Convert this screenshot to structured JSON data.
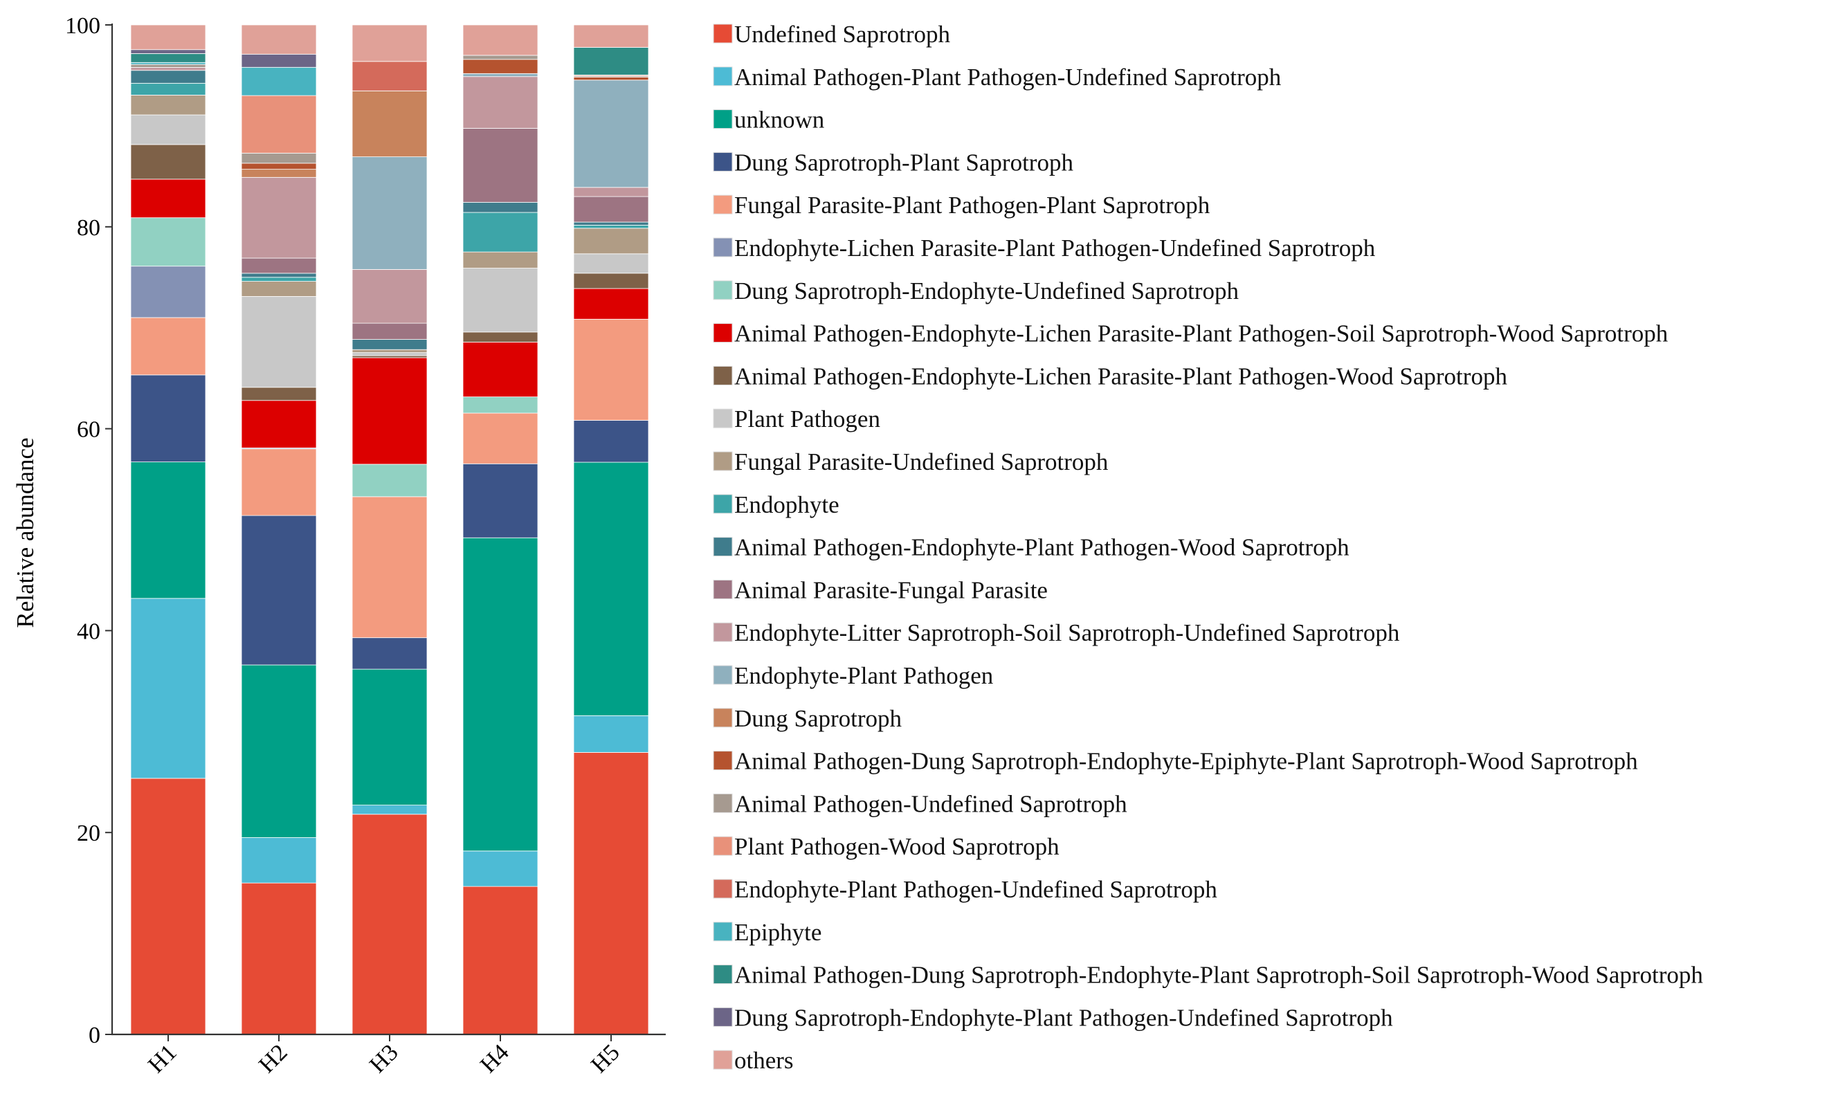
{
  "chart_data": {
    "type": "stacked-bar",
    "title": "",
    "xlabel": "",
    "ylabel": "Relative abundance",
    "ylim": [
      0,
      100
    ],
    "yticks": [
      0,
      20,
      40,
      60,
      80,
      100
    ],
    "categories": [
      "H1",
      "H2",
      "H3",
      "H4",
      "H5"
    ],
    "legend_position": "right",
    "series": [
      {
        "name": "Undefined Saprotroph",
        "color": "#E64B35",
        "values": [
          25.9,
          15.0,
          21.7,
          14.6,
          27.6
        ]
      },
      {
        "name": "Animal Pathogen-Plant Pathogen-Undefined Saprotroph",
        "color": "#4DBBD5",
        "values": [
          18.2,
          4.5,
          0.9,
          3.5,
          3.6
        ]
      },
      {
        "name": "unknown",
        "color": "#00A087",
        "values": [
          13.8,
          17.1,
          13.4,
          30.9,
          24.8
        ]
      },
      {
        "name": "Dung Saprotroph-Plant Saprotroph",
        "color": "#3C5488",
        "values": [
          8.8,
          14.8,
          3.1,
          7.3,
          4.1
        ]
      },
      {
        "name": "Fungal Parasite-Plant Pathogen-Plant Saprotroph",
        "color": "#F39B7F",
        "values": [
          5.8,
          6.6,
          13.9,
          5.0,
          9.9
        ]
      },
      {
        "name": "Endophyte-Lichen Parasite-Plant Pathogen-Undefined Saprotroph",
        "color": "#8491B4",
        "values": [
          5.2,
          0.1,
          0,
          0,
          0
        ]
      },
      {
        "name": "Dung Saprotroph-Endophyte-Undefined Saprotroph",
        "color": "#91D1C2",
        "values": [
          4.9,
          0,
          3.2,
          1.6,
          0
        ]
      },
      {
        "name": "Animal Pathogen-Endophyte-Lichen Parasite-Plant Pathogen-Soil Saprotroph-Wood Saprotroph",
        "color": "#DC0000",
        "values": [
          3.9,
          4.7,
          10.5,
          5.4,
          3.0
        ]
      },
      {
        "name": "Animal Pathogen-Endophyte-Lichen Parasite-Plant Pathogen-Wood Saprotroph",
        "color": "#7E6148",
        "values": [
          3.5,
          1.3,
          0.2,
          1.0,
          1.5
        ]
      },
      {
        "name": "Plant Pathogen",
        "color": "#C8C8C8",
        "values": [
          3.0,
          9.0,
          0.3,
          6.3,
          1.9
        ]
      },
      {
        "name": "Fungal Parasite-Undefined Saprotroph",
        "color": "#B09C85",
        "values": [
          2.0,
          1.5,
          0.3,
          1.6,
          2.5
        ]
      },
      {
        "name": "Endophyte",
        "color": "#3DA5A8",
        "values": [
          1.2,
          0.4,
          0,
          3.9,
          0.3
        ]
      },
      {
        "name": "Animal Pathogen-Endophyte-Plant Pathogen-Wood Saprotroph",
        "color": "#3F7C8C",
        "values": [
          1.3,
          0.4,
          1.0,
          1.0,
          0.3
        ]
      },
      {
        "name": "Animal Parasite-Fungal Parasite",
        "color": "#9D7482",
        "values": [
          0,
          1.5,
          1.6,
          7.3,
          2.5
        ]
      },
      {
        "name": "Endophyte-Litter Saprotroph-Soil Saprotroph-Undefined Saprotroph",
        "color": "#C2979D",
        "values": [
          0.3,
          8.0,
          5.3,
          5.1,
          0.9
        ]
      },
      {
        "name": "Endophyte-Plant Pathogen",
        "color": "#8FB0BE",
        "values": [
          0,
          0,
          11.1,
          0.3,
          10.5
        ]
      },
      {
        "name": "Dung Saprotroph",
        "color": "#C8835C",
        "values": [
          0,
          0.8,
          6.5,
          0,
          0
        ]
      },
      {
        "name": "Animal Pathogen-Dung Saprotroph-Endophyte-Epiphyte-Plant Saprotroph-Wood Saprotroph",
        "color": "#B5532F",
        "values": [
          0,
          0.6,
          0,
          1.4,
          0.3
        ]
      },
      {
        "name": "Animal Pathogen-Undefined Saprotroph",
        "color": "#A69A90",
        "values": [
          0.3,
          1.0,
          0,
          0.4,
          0.1
        ]
      },
      {
        "name": "Plant Pathogen-Wood Saprotroph",
        "color": "#E8917A",
        "values": [
          0,
          5.7,
          0,
          0,
          0.1
        ]
      },
      {
        "name": "Endophyte-Plant Pathogen-Undefined Saprotroph",
        "color": "#D46A5B",
        "values": [
          0,
          0,
          2.9,
          0,
          0
        ]
      },
      {
        "name": "Epiphyte",
        "color": "#48B3C0",
        "values": [
          0.2,
          2.8,
          0,
          0,
          0
        ]
      },
      {
        "name": "Animal Pathogen-Dung Saprotroph-Endophyte-Plant Saprotroph-Soil Saprotroph-Wood Saprotroph",
        "color": "#2E8C84",
        "values": [
          0.9,
          0,
          0,
          0,
          2.7
        ]
      },
      {
        "name": "Dung Saprotroph-Endophyte-Plant Pathogen-Undefined Saprotroph",
        "color": "#6C6587",
        "values": [
          0.4,
          1.3,
          0,
          0,
          0
        ]
      },
      {
        "name": "others",
        "color": "#E0A198",
        "values": [
          2.5,
          2.9,
          3.6,
          3.0,
          2.2
        ]
      }
    ]
  }
}
